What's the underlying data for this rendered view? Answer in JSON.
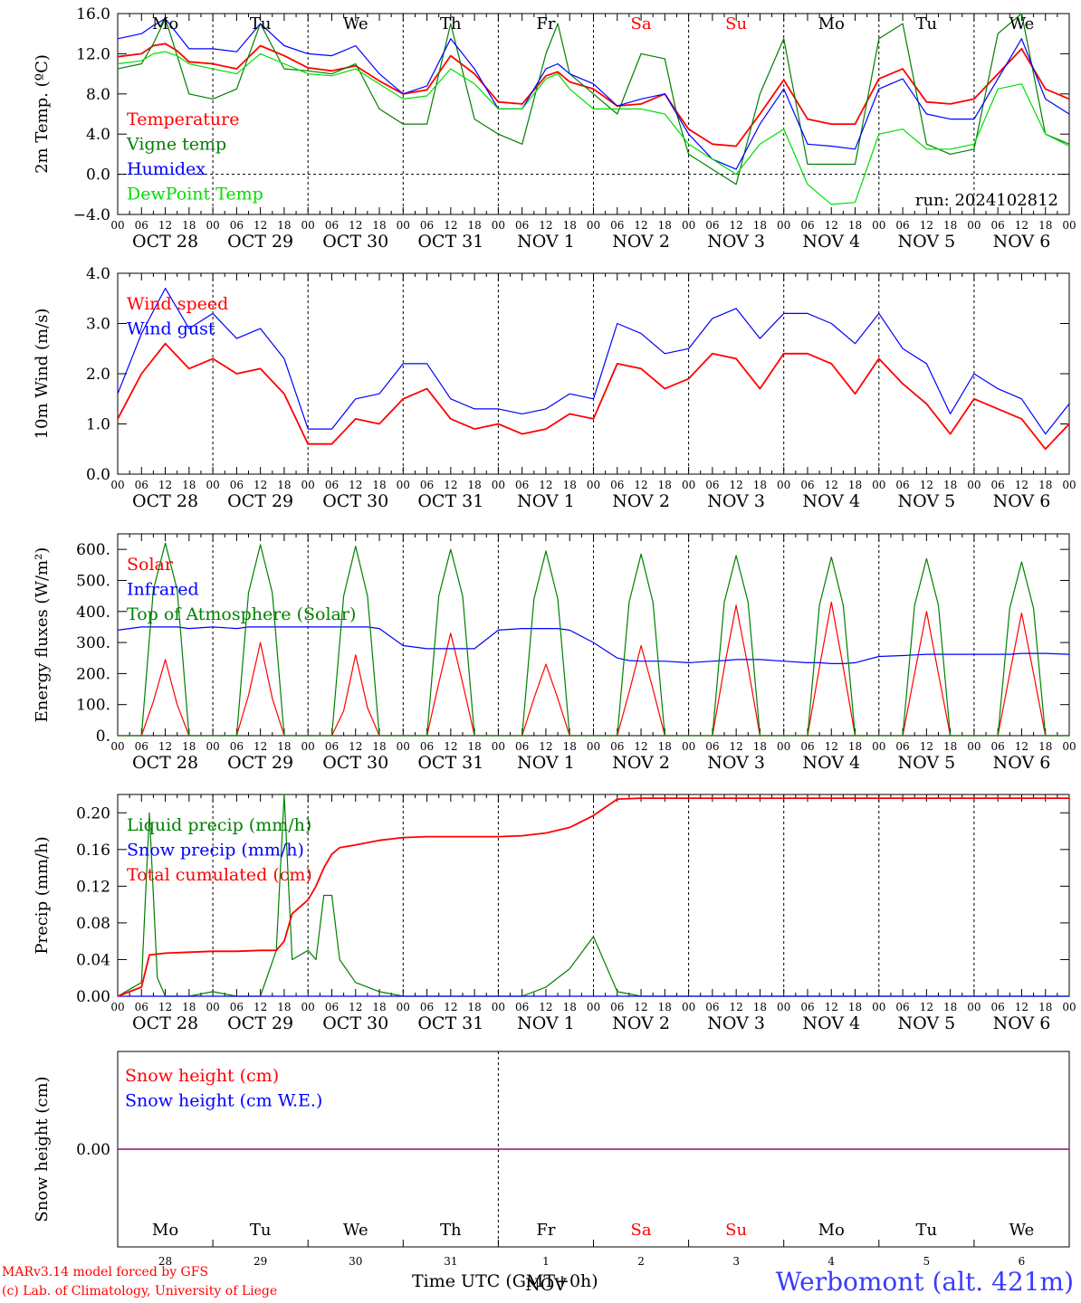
{
  "page": {
    "credit_line1": "MARv3.14 model forced by GFS",
    "credit_line2": "(c) Lab. of Climatology, University of Liege",
    "station": "Werbomont (alt. 421m)",
    "xlabel": "Time UTC (GMT+0h)",
    "bottom_month": "NOV"
  },
  "colors": {
    "red": "#ff0000",
    "green": "#008000",
    "blue": "#0000ff",
    "lightgreen": "#00dd00",
    "purple": "#7f007f",
    "text": "#000000",
    "weekend": "#ff0000"
  },
  "days": {
    "names": [
      "Mo",
      "Tu",
      "We",
      "Th",
      "Fr",
      "Sa",
      "Su",
      "Mo",
      "Tu",
      "We"
    ],
    "weekend": [
      false,
      false,
      false,
      false,
      false,
      true,
      true,
      false,
      false,
      false
    ],
    "dates": [
      "OCT 28",
      "OCT 29",
      "OCT 30",
      "OCT 31",
      "NOV 1",
      "NOV 2",
      "NOV 3",
      "NOV 4",
      "NOV 5",
      "NOV 6"
    ],
    "daynums": [
      "28",
      "29",
      "30",
      "31",
      "1",
      "2",
      "3",
      "4",
      "5",
      "6"
    ],
    "hour_ticks": [
      "00",
      "06",
      "12",
      "18"
    ],
    "final_tick": "00"
  },
  "chart_data": [
    {
      "type": "line",
      "ylabel": "2m Temp. (ºC)",
      "ylim": [
        -4,
        16
      ],
      "yticks": [
        "−4.0",
        "0.0",
        "4.0",
        "8.0",
        "12.0",
        "16.0"
      ],
      "ytick_values": [
        -4,
        0,
        4,
        8,
        12,
        16
      ],
      "zero_line": true,
      "annotation": "run: 2024102812",
      "show_day_names": true,
      "x_hours": [
        0,
        6,
        9,
        12,
        15,
        18,
        24,
        30,
        36,
        42,
        48,
        54,
        60,
        66,
        72,
        78,
        84,
        90,
        96,
        102,
        108,
        111,
        114,
        120,
        126,
        132,
        138,
        141,
        144,
        150,
        156,
        162,
        168,
        174,
        180,
        186,
        192,
        198,
        204,
        210,
        216,
        222,
        228,
        234,
        240
      ],
      "series": [
        {
          "name": "Temperature",
          "color": "#ff0000",
          "values": [
            11.7,
            12.0,
            12.8,
            13.0,
            12.3,
            11.2,
            11.0,
            10.5,
            12.8,
            11.8,
            10.6,
            10.3,
            10.8,
            9.3,
            8.0,
            8.4,
            11.8,
            10.0,
            7.2,
            7.0,
            9.8,
            10.2,
            9.2,
            8.5,
            6.8,
            7.0,
            8.0,
            6.2,
            4.5,
            3.0,
            2.8,
            6.0,
            9.4,
            5.5,
            5.0,
            5.0,
            9.5,
            10.5,
            7.2,
            7.0,
            7.5,
            10.0,
            12.5,
            8.5,
            7.5
          ]
        },
        {
          "name": "Vigne temp",
          "color": "#008000",
          "values": [
            10.5,
            11.0,
            13.0,
            15.5,
            11.8,
            8.0,
            7.5,
            8.5,
            15.0,
            10.5,
            10.3,
            10.0,
            11.0,
            6.5,
            5.0,
            5.0,
            15.0,
            5.5,
            4.0,
            3.0,
            12.0,
            15.0,
            10.0,
            8.0,
            6.0,
            12.0,
            11.5,
            6.0,
            2.0,
            0.5,
            -1.0,
            8.0,
            13.5,
            1.0,
            1.0,
            1.0,
            13.5,
            15.0,
            3.0,
            2.0,
            2.5,
            14.0,
            16.0,
            4.0,
            3.0
          ]
        },
        {
          "name": "Humidex",
          "color": "#0000ff",
          "values": [
            13.5,
            14.0,
            14.8,
            15.5,
            14.0,
            12.5,
            12.5,
            12.2,
            15.0,
            12.8,
            12.0,
            11.8,
            12.8,
            10.0,
            8.0,
            8.8,
            13.5,
            10.5,
            6.5,
            6.5,
            10.5,
            11.0,
            10.0,
            9.0,
            6.8,
            7.5,
            8.0,
            6.0,
            4.0,
            1.5,
            0.5,
            5.0,
            8.5,
            3.0,
            2.8,
            2.5,
            8.5,
            9.5,
            6.0,
            5.5,
            5.5,
            9.5,
            13.5,
            7.5,
            6.0
          ]
        },
        {
          "name": "DewPoint Temp",
          "color": "#00dd00",
          "values": [
            11.0,
            11.3,
            12.0,
            12.2,
            11.8,
            11.0,
            10.5,
            10.0,
            12.0,
            11.0,
            10.0,
            9.8,
            10.5,
            9.0,
            7.5,
            7.8,
            10.5,
            9.0,
            6.5,
            6.5,
            9.5,
            10.0,
            8.5,
            6.5,
            6.5,
            6.5,
            6.0,
            4.5,
            3.0,
            1.5,
            0.0,
            3.0,
            4.5,
            -1.0,
            -3.0,
            -2.8,
            4.0,
            4.5,
            2.5,
            2.5,
            3.0,
            8.5,
            9.0,
            4.0,
            2.8
          ]
        }
      ]
    },
    {
      "type": "line",
      "ylabel": "10m Wind (m/s)",
      "ylim": [
        0,
        4
      ],
      "yticks": [
        "0.0",
        "1.0",
        "2.0",
        "3.0",
        "4.0"
      ],
      "ytick_values": [
        0,
        1,
        2,
        3,
        4
      ],
      "zero_line": false,
      "show_day_names": false,
      "x_hours": [
        0,
        6,
        12,
        18,
        24,
        30,
        36,
        42,
        48,
        54,
        60,
        66,
        72,
        78,
        84,
        90,
        96,
        102,
        108,
        114,
        120,
        126,
        132,
        138,
        144,
        150,
        156,
        162,
        168,
        174,
        180,
        186,
        192,
        198,
        204,
        210,
        216,
        222,
        228,
        234,
        240
      ],
      "series": [
        {
          "name": "Wind speed",
          "color": "#ff0000",
          "values": [
            1.1,
            2.0,
            2.6,
            2.1,
            2.3,
            2.0,
            2.1,
            1.6,
            0.6,
            0.6,
            1.1,
            1.0,
            1.5,
            1.7,
            1.1,
            0.9,
            1.0,
            0.8,
            0.9,
            1.2,
            1.1,
            2.2,
            2.1,
            1.7,
            1.9,
            2.4,
            2.3,
            1.7,
            2.4,
            2.4,
            2.2,
            1.6,
            2.3,
            1.8,
            1.4,
            0.8,
            1.5,
            1.3,
            1.1,
            0.5,
            1.0
          ]
        },
        {
          "name": "Wind gust",
          "color": "#0000ff",
          "values": [
            1.6,
            2.8,
            3.7,
            2.9,
            3.2,
            2.7,
            2.9,
            2.3,
            0.9,
            0.9,
            1.5,
            1.6,
            2.2,
            2.2,
            1.5,
            1.3,
            1.3,
            1.2,
            1.3,
            1.6,
            1.5,
            3.0,
            2.8,
            2.4,
            2.5,
            3.1,
            3.3,
            2.7,
            3.2,
            3.2,
            3.0,
            2.6,
            3.2,
            2.5,
            2.2,
            1.2,
            2.0,
            1.7,
            1.5,
            0.8,
            1.4
          ]
        }
      ]
    },
    {
      "type": "line",
      "ylabel": "Energy fluxes (W/m²)",
      "ylim": [
        0,
        650
      ],
      "yticks": [
        "0.",
        "100.",
        "200.",
        "300.",
        "400.",
        "500.",
        "600."
      ],
      "ytick_values": [
        0,
        100,
        200,
        300,
        400,
        500,
        600
      ],
      "zero_line": false,
      "show_day_names": false,
      "x_hours": [
        0,
        6,
        9,
        12,
        15,
        18,
        24,
        30,
        33,
        36,
        39,
        42,
        48,
        54,
        57,
        60,
        63,
        66,
        72,
        78,
        81,
        84,
        87,
        90,
        96,
        102,
        105,
        108,
        111,
        114,
        120,
        126,
        129,
        132,
        135,
        138,
        144,
        150,
        153,
        156,
        159,
        162,
        168,
        174,
        177,
        180,
        183,
        186,
        192,
        198,
        201,
        204,
        207,
        210,
        216,
        222,
        225,
        228,
        231,
        234,
        240
      ],
      "series": [
        {
          "name": "Solar",
          "color": "#ff0000",
          "values": [
            0,
            0,
            110,
            245,
            100,
            0,
            0,
            0,
            130,
            300,
            120,
            0,
            0,
            0,
            80,
            260,
            90,
            0,
            0,
            0,
            170,
            330,
            170,
            0,
            0,
            0,
            120,
            230,
            120,
            0,
            0,
            0,
            140,
            290,
            150,
            0,
            0,
            0,
            220,
            420,
            220,
            0,
            0,
            0,
            220,
            430,
            220,
            0,
            0,
            0,
            200,
            400,
            200,
            0,
            0,
            0,
            200,
            395,
            200,
            0,
            0
          ]
        },
        {
          "name": "Infrared",
          "color": "#0000ff",
          "values": [
            340,
            350,
            350,
            350,
            350,
            345,
            350,
            345,
            350,
            350,
            350,
            350,
            350,
            350,
            350,
            350,
            350,
            345,
            290,
            280,
            280,
            280,
            280,
            280,
            340,
            345,
            345,
            345,
            345,
            340,
            300,
            250,
            242,
            240,
            240,
            240,
            235,
            240,
            242,
            245,
            245,
            245,
            240,
            235,
            235,
            232,
            232,
            235,
            255,
            258,
            260,
            262,
            262,
            262,
            262,
            262,
            262,
            265,
            265,
            265,
            262
          ]
        },
        {
          "name": "Top of Atmosphere (Solar)",
          "color": "#008000",
          "values": [
            0,
            0,
            470,
            620,
            470,
            0,
            0,
            0,
            460,
            615,
            460,
            0,
            0,
            0,
            450,
            610,
            450,
            0,
            0,
            0,
            450,
            600,
            450,
            0,
            0,
            0,
            440,
            595,
            440,
            0,
            0,
            0,
            430,
            585,
            430,
            0,
            0,
            0,
            430,
            580,
            430,
            0,
            0,
            0,
            420,
            575,
            420,
            0,
            0,
            0,
            420,
            570,
            420,
            0,
            0,
            0,
            410,
            560,
            410,
            0,
            0
          ]
        }
      ]
    },
    {
      "type": "line",
      "ylabel": "Precip (mm/h)",
      "ylim": [
        0,
        0.22
      ],
      "yticks": [
        "0.00",
        "0.04",
        "0.08",
        "0.12",
        "0.16",
        "0.20"
      ],
      "ytick_values": [
        0,
        0.04,
        0.08,
        0.12,
        0.16,
        0.2
      ],
      "zero_line": false,
      "show_day_names": false,
      "x_hours": [
        0,
        6,
        8,
        10,
        12,
        18,
        24,
        30,
        36,
        40,
        42,
        44,
        48,
        50,
        52,
        54,
        56,
        60,
        66,
        72,
        78,
        84,
        90,
        96,
        102,
        108,
        114,
        120,
        126,
        132,
        138,
        144,
        150,
        156,
        162,
        168,
        174,
        180,
        186,
        192,
        198,
        204,
        210,
        216,
        222,
        228,
        234,
        240
      ],
      "series": [
        {
          "name": "Liquid precip (mm/h)",
          "color": "#008000",
          "values": [
            0,
            0.015,
            0.2,
            0.02,
            0,
            0,
            0.005,
            0,
            0,
            0.05,
            0.22,
            0.04,
            0.05,
            0.04,
            0.11,
            0.11,
            0.04,
            0.015,
            0.005,
            0,
            0,
            0,
            0,
            0,
            0,
            0.01,
            0.03,
            0.065,
            0.005,
            0,
            0,
            0,
            0,
            0,
            0,
            0,
            0,
            0,
            0,
            0,
            0,
            0,
            0,
            0,
            0,
            0,
            0,
            0
          ]
        },
        {
          "name": "Snow precip (mm/h)",
          "color": "#0000ff",
          "values": [
            0,
            0,
            0,
            0,
            0,
            0,
            0,
            0,
            0,
            0,
            0,
            0,
            0,
            0,
            0,
            0,
            0,
            0,
            0,
            0,
            0,
            0,
            0,
            0,
            0,
            0,
            0,
            0,
            0,
            0,
            0,
            0,
            0,
            0,
            0,
            0,
            0,
            0,
            0,
            0,
            0,
            0,
            0,
            0,
            0,
            0,
            0,
            0
          ]
        },
        {
          "name": "Total cumulated (cm)",
          "color": "#ff0000",
          "values": [
            0,
            0.01,
            0.045,
            0.046,
            0.047,
            0.048,
            0.049,
            0.049,
            0.05,
            0.05,
            0.06,
            0.09,
            0.105,
            0.12,
            0.14,
            0.155,
            0.162,
            0.165,
            0.17,
            0.173,
            0.174,
            0.174,
            0.174,
            0.174,
            0.175,
            0.178,
            0.184,
            0.197,
            0.215,
            0.216,
            0.216,
            0.216,
            0.216,
            0.216,
            0.216,
            0.216,
            0.216,
            0.216,
            0.216,
            0.216,
            0.216,
            0.216,
            0.216,
            0.216,
            0.216,
            0.216,
            0.216,
            0.216
          ]
        }
      ]
    },
    {
      "type": "line",
      "ylabel": "Snow height (cm)",
      "ylim": [
        -1,
        1
      ],
      "yticks": [
        "0.00"
      ],
      "ytick_values": [
        0
      ],
      "zero_line": false,
      "show_day_names": false,
      "x_hours": [
        0,
        240
      ],
      "series": [
        {
          "name": "Snow height (cm)",
          "color": "#ff0000",
          "values": [
            0,
            0
          ]
        },
        {
          "name": "Snow height (cm W.E.)",
          "color": "#0000ff",
          "values": [
            0,
            0
          ]
        }
      ]
    }
  ]
}
